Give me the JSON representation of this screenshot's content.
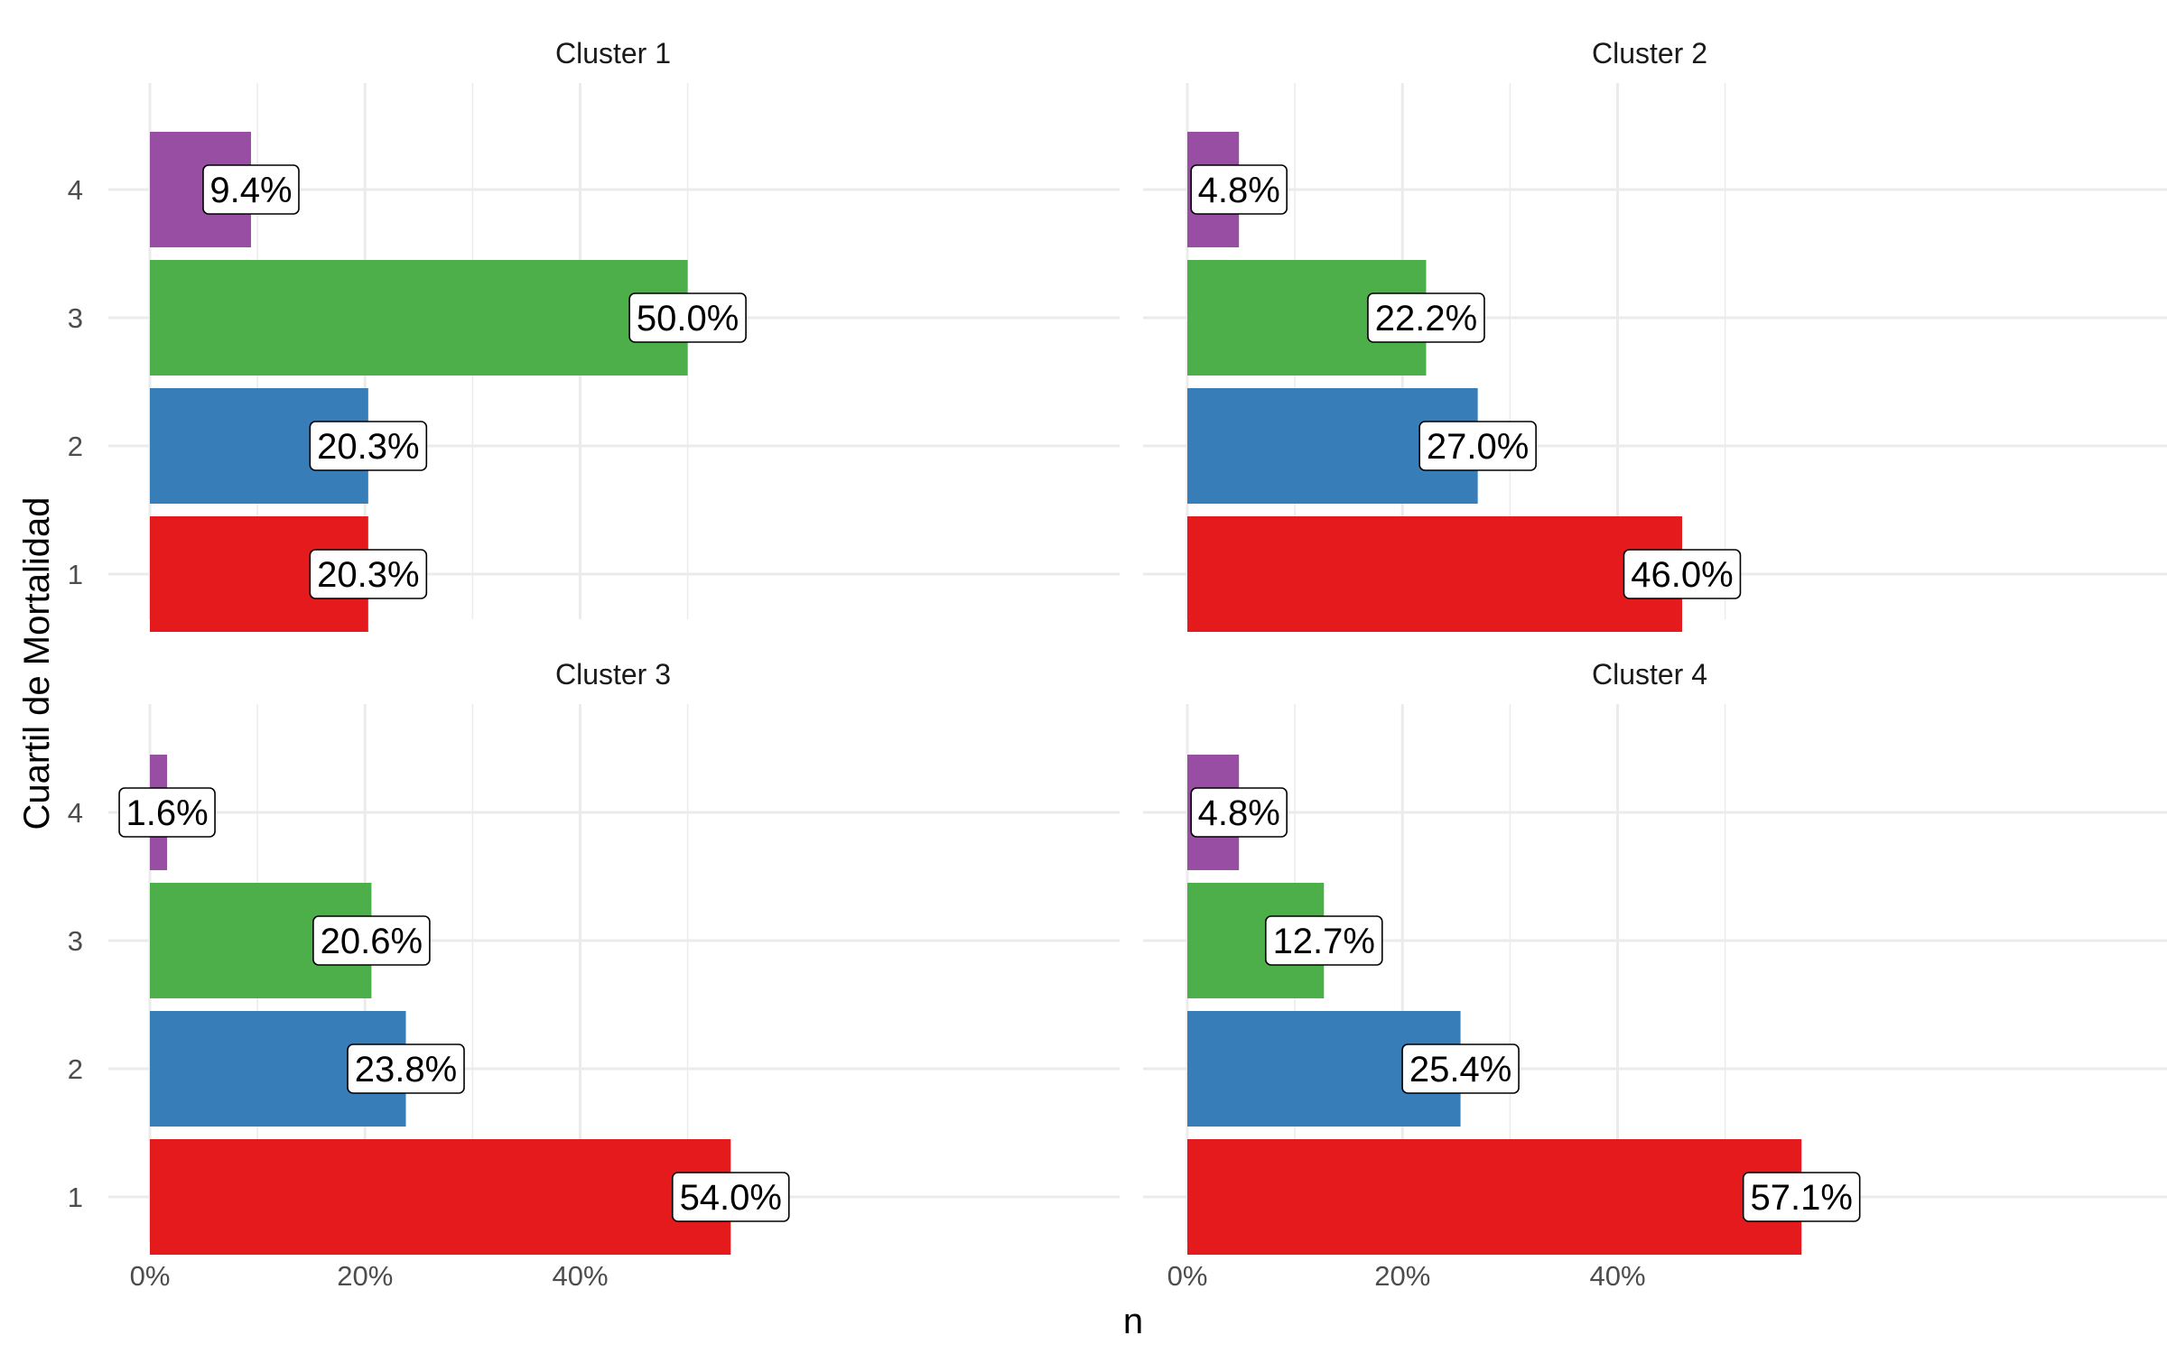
{
  "chart_data": {
    "type": "bar",
    "orientation": "horizontal",
    "facet_by": "cluster",
    "xlabel": "n",
    "ylabel": "Cuartil de Mortalidad",
    "xlim": [
      0,
      0.57
    ],
    "x_ticks": [
      0,
      0.2,
      0.4
    ],
    "x_tick_labels": [
      "0%",
      "20%",
      "40%"
    ],
    "categories": [
      "1",
      "2",
      "3",
      "4"
    ],
    "colors": {
      "1": "#e41a1c",
      "2": "#377eb8",
      "3": "#4daf4a",
      "4": "#984ea3"
    },
    "grid": true,
    "legend": "none",
    "panels": [
      {
        "title": "Cluster 1",
        "values": [
          0.203,
          0.203,
          0.5,
          0.094
        ],
        "labels": [
          "20.3%",
          "20.3%",
          "50.0%",
          "9.4%"
        ]
      },
      {
        "title": "Cluster 2",
        "values": [
          0.46,
          0.27,
          0.222,
          0.048
        ],
        "labels": [
          "46.0%",
          "27.0%",
          "22.2%",
          "4.8%"
        ]
      },
      {
        "title": "Cluster 3",
        "values": [
          0.54,
          0.238,
          0.206,
          0.016
        ],
        "labels": [
          "54.0%",
          "23.8%",
          "20.6%",
          "1.6%"
        ]
      },
      {
        "title": "Cluster 4",
        "values": [
          0.571,
          0.254,
          0.127,
          0.048
        ],
        "labels": [
          "57.1%",
          "25.4%",
          "12.7%",
          "4.8%"
        ]
      }
    ]
  }
}
